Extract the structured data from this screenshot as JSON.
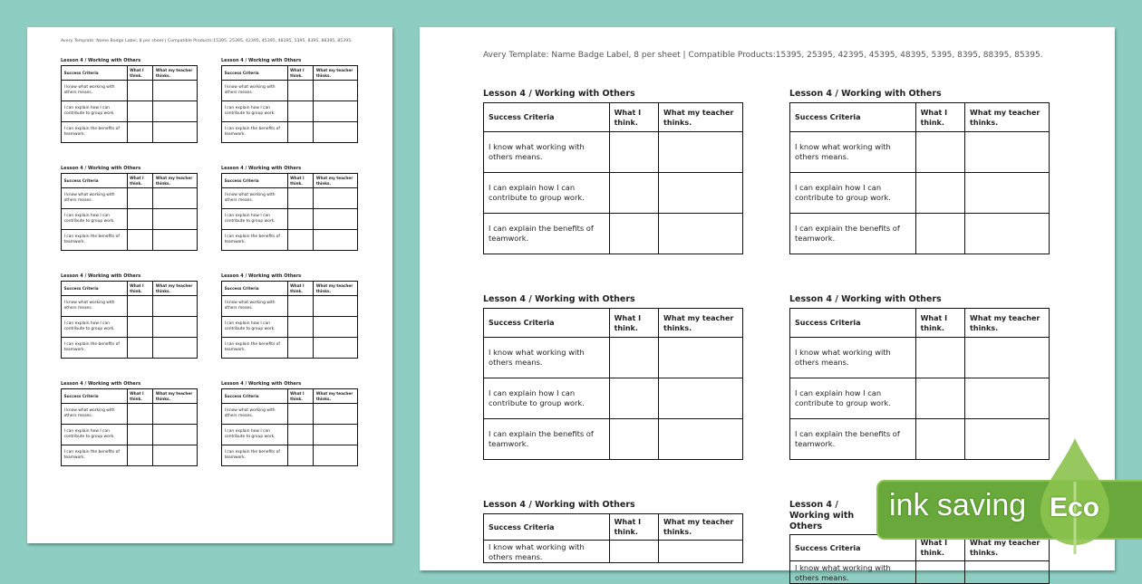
{
  "header_text": "Avery Template: Name Badge Label, 8 per sheet | Compatible Products:15395, 25395, 42395, 45395, 48395, 5395, 8395, 88395, 85395.",
  "label": {
    "title": "Lesson 4 / Working with Others",
    "columns": [
      "Success Criteria",
      "What I think.",
      "What my teacher thinks."
    ],
    "rows": [
      "I know what working with others means.",
      "I can explain how I can contribute to group work.",
      "I can explain the benefits of teamwork."
    ]
  },
  "pages": {
    "small": {
      "label_count": 8
    },
    "large": {
      "label_count": 6
    }
  },
  "badge": {
    "text": "ink saving",
    "eco": "Eco",
    "icon": "leaf-drop-icon",
    "colors": {
      "badge": "#69a83a",
      "leaf": "#8cc24f"
    }
  },
  "colors": {
    "background": "#8ecdc2",
    "page": "#ffffff"
  }
}
